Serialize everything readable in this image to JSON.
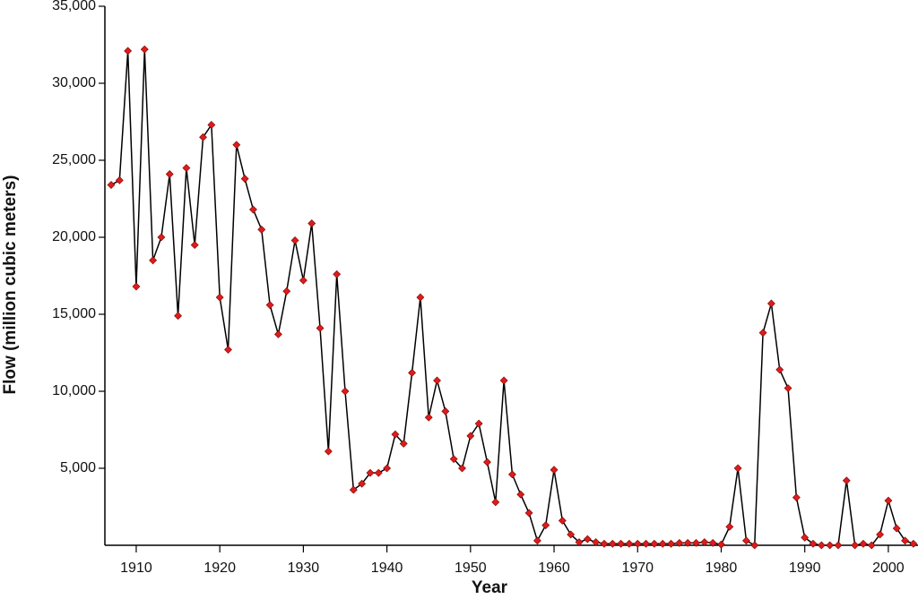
{
  "chart_data": {
    "type": "line",
    "x_label": "Year",
    "y_label": "Flow (million cubic meters)",
    "x": [
      1907,
      1908,
      1909,
      1910,
      1911,
      1912,
      1913,
      1914,
      1915,
      1916,
      1917,
      1918,
      1919,
      1920,
      1921,
      1922,
      1923,
      1924,
      1925,
      1926,
      1927,
      1928,
      1929,
      1930,
      1931,
      1932,
      1933,
      1934,
      1935,
      1936,
      1937,
      1938,
      1939,
      1940,
      1941,
      1942,
      1943,
      1944,
      1945,
      1946,
      1947,
      1948,
      1949,
      1950,
      1951,
      1952,
      1953,
      1954,
      1955,
      1956,
      1957,
      1958,
      1959,
      1960,
      1961,
      1962,
      1963,
      1964,
      1965,
      1966,
      1967,
      1968,
      1969,
      1970,
      1971,
      1972,
      1973,
      1974,
      1975,
      1976,
      1977,
      1978,
      1979,
      1980,
      1981,
      1982,
      1983,
      1984,
      1985,
      1986,
      1987,
      1988,
      1989,
      1990,
      1991,
      1992,
      1993,
      1994,
      1995,
      1996,
      1997,
      1998,
      1999,
      2000,
      2001,
      2002,
      2003
    ],
    "values": [
      23400,
      23700,
      32100,
      16800,
      32200,
      18500,
      20000,
      24100,
      14900,
      24500,
      19500,
      26500,
      27300,
      16100,
      12700,
      26000,
      23800,
      21800,
      20500,
      15600,
      13700,
      16500,
      19800,
      17200,
      20900,
      14100,
      6100,
      17600,
      10000,
      3600,
      4000,
      4700,
      4700,
      5000,
      7200,
      6600,
      11200,
      16100,
      8300,
      10700,
      8700,
      5600,
      5000,
      7100,
      7900,
      5400,
      2800,
      10700,
      4600,
      3300,
      2100,
      300,
      1300,
      4900,
      1600,
      700,
      200,
      400,
      200,
      100,
      100,
      100,
      100,
      100,
      100,
      100,
      100,
      100,
      150,
      150,
      150,
      200,
      150,
      50,
      1200,
      5000,
      300,
      0,
      13800,
      15700,
      11400,
      10200,
      3100,
      500,
      100,
      0,
      0,
      0,
      4200,
      0,
      100,
      0,
      700,
      2900,
      1100,
      300,
      100
    ],
    "color": "#dd1c1c",
    "line_color": "#000000",
    "xlim": [
      1906.25,
      2003.55
    ],
    "xticks": [
      1910,
      1920,
      1930,
      1940,
      1950,
      1960,
      1970,
      1980,
      1990,
      2000
    ],
    "ylim": [
      0,
      35000
    ],
    "yticks": [
      {
        "value": 5000,
        "label": "5,000"
      },
      {
        "value": 10000,
        "label": "10,000"
      },
      {
        "value": 15000,
        "label": "15,000"
      },
      {
        "value": 20000,
        "label": "20,000"
      },
      {
        "value": 25000,
        "label": "25,000"
      },
      {
        "value": 30000,
        "label": "30,000"
      },
      {
        "value": 35000,
        "label": "35,000"
      }
    ],
    "grid": false
  }
}
